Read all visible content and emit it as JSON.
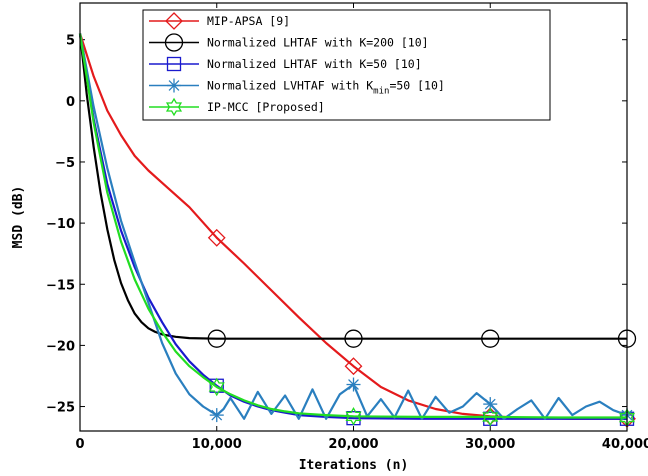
{
  "chart_data": {
    "type": "line",
    "xlabel": "Iterations (n)",
    "ylabel": "MSD (dB)",
    "xlim": [
      0,
      40000
    ],
    "ylim": [
      -27,
      8
    ],
    "xticks": [
      0,
      10000,
      20000,
      30000,
      40000
    ],
    "xtick_labels": [
      "0",
      "10,000",
      "20,000",
      "30,000",
      "40,000"
    ],
    "yticks": [
      5,
      0,
      -5,
      -10,
      -15,
      -20,
      -25
    ],
    "ytick_labels": [
      "5",
      "0",
      "−5",
      "−10",
      "−15",
      "−20",
      "−25"
    ],
    "grid": false,
    "legend_position": "top-center",
    "legend": [
      {
        "text": "MIP-APSA [9]",
        "sub": "",
        "after": ""
      },
      {
        "text": "Normalized LHTAF with K=200 [10]",
        "sub": "",
        "after": ""
      },
      {
        "text": "Normalized LHTAF with K=50 [10]",
        "sub": "",
        "after": ""
      },
      {
        "text": "Normalized LVHTAF with K",
        "sub": "min",
        "after": "=50 [10]"
      },
      {
        "text": "IP-MCC [Proposed]",
        "sub": "",
        "after": ""
      }
    ],
    "series": [
      {
        "color": "#e41a1c",
        "marker": "diamond",
        "markers_x": [
          10000,
          20000,
          30000,
          40000
        ],
        "x": [
          0,
          1000,
          2000,
          3000,
          4000,
          5000,
          6000,
          8000,
          10000,
          12000,
          14000,
          16000,
          18000,
          20000,
          22000,
          24000,
          26000,
          28000,
          30000,
          32000,
          34000,
          36000,
          38000,
          40000
        ],
        "y": [
          5.5,
          2.0,
          -0.8,
          -2.8,
          -4.5,
          -5.7,
          -6.7,
          -8.7,
          -11.2,
          -13.3,
          -15.5,
          -17.7,
          -19.8,
          -21.7,
          -23.4,
          -24.5,
          -25.2,
          -25.6,
          -25.8,
          -25.9,
          -25.95,
          -26.0,
          -26.0,
          -26.0
        ]
      },
      {
        "color": "#000000",
        "marker": "circle",
        "markers_x": [
          10000,
          20000,
          30000,
          40000
        ],
        "x": [
          0,
          500,
          1000,
          1500,
          2000,
          2500,
          3000,
          3500,
          4000,
          4500,
          5000,
          5500,
          6000,
          7000,
          8000,
          10000,
          20000,
          30000,
          40000
        ],
        "y": [
          5.5,
          0.5,
          -3.8,
          -7.5,
          -10.5,
          -13.0,
          -14.9,
          -16.3,
          -17.4,
          -18.1,
          -18.6,
          -18.9,
          -19.1,
          -19.3,
          -19.4,
          -19.45,
          -19.45,
          -19.45,
          -19.45
        ]
      },
      {
        "color": "#1a1acd",
        "marker": "square",
        "markers_x": [
          10000,
          20000,
          30000,
          40000
        ],
        "x": [
          0,
          1000,
          2000,
          3000,
          4000,
          5000,
          6000,
          7000,
          8000,
          9000,
          10000,
          11000,
          12000,
          13000,
          14000,
          15000,
          16000,
          18000,
          20000,
          25000,
          30000,
          35000,
          40000
        ],
        "y": [
          5.5,
          -1.5,
          -6.8,
          -10.6,
          -13.6,
          -16.1,
          -18.1,
          -19.9,
          -21.3,
          -22.4,
          -23.3,
          -24.1,
          -24.6,
          -25.0,
          -25.3,
          -25.5,
          -25.7,
          -25.85,
          -25.95,
          -26.0,
          -26.0,
          -26.0,
          -26.0
        ]
      },
      {
        "color": "#2a7fbf",
        "marker": "star",
        "markers_x": [
          10000,
          20000,
          30000,
          40000
        ],
        "x": [
          0,
          1000,
          2000,
          3000,
          4000,
          5000,
          6000,
          7000,
          8000,
          9000,
          10000,
          10500,
          11000,
          12000,
          13000,
          14000,
          15000,
          16000,
          17000,
          18000,
          19000,
          20000,
          21000,
          22000,
          23000,
          24000,
          25000,
          26000,
          27000,
          28000,
          29000,
          30000,
          31000,
          32000,
          33000,
          34000,
          35000,
          36000,
          37000,
          38000,
          39000,
          40000
        ],
        "y": [
          5.5,
          -0.5,
          -5.5,
          -9.8,
          -13.2,
          -16.5,
          -19.8,
          -22.3,
          -24.0,
          -25.0,
          -25.7,
          -25.2,
          -24.3,
          -26.0,
          -23.8,
          -25.6,
          -24.1,
          -26.0,
          -23.6,
          -26.0,
          -24.0,
          -23.2,
          -25.8,
          -24.4,
          -25.9,
          -23.7,
          -26.0,
          -24.2,
          -25.5,
          -25.0,
          -23.9,
          -24.8,
          -26.0,
          -25.2,
          -24.5,
          -26.0,
          -24.3,
          -25.7,
          -25.0,
          -24.6,
          -25.3,
          -25.7
        ]
      },
      {
        "color": "#22dd22",
        "marker": "hexagram",
        "markers_x": [
          10000,
          20000,
          30000,
          40000
        ],
        "x": [
          0,
          1000,
          2000,
          3000,
          4000,
          5000,
          6000,
          7000,
          8000,
          9000,
          10000,
          11000,
          12000,
          13000,
          14000,
          15000,
          16000,
          18000,
          20000,
          25000,
          30000,
          35000,
          40000
        ],
        "y": [
          5.5,
          -1.8,
          -7.5,
          -11.5,
          -14.6,
          -17.0,
          -18.9,
          -20.5,
          -21.7,
          -22.6,
          -23.4,
          -24.0,
          -24.5,
          -24.9,
          -25.2,
          -25.4,
          -25.55,
          -25.7,
          -25.8,
          -25.85,
          -25.85,
          -25.9,
          -25.9
        ]
      }
    ]
  }
}
